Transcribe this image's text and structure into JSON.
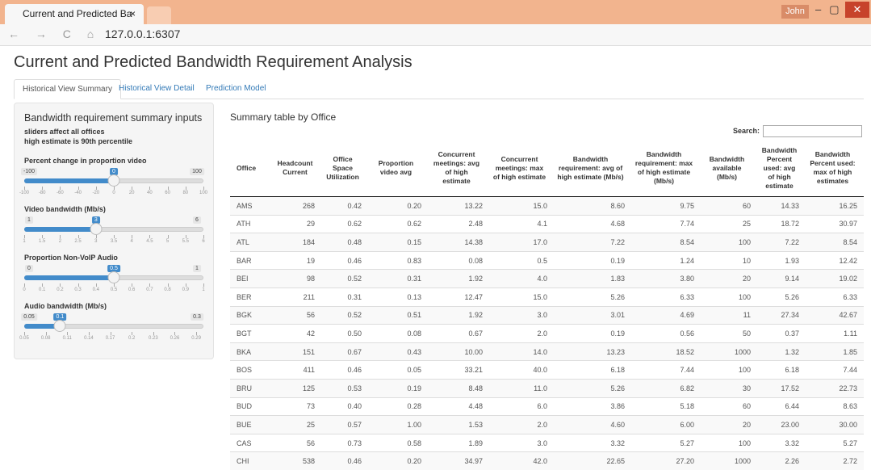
{
  "browser": {
    "tab_title": "Current and Predicted Ba",
    "user": "John",
    "url": "127.0.0.1:6307"
  },
  "header": {
    "title": "Current and Predicted Bandwidth Requirement Analysis"
  },
  "tabs": [
    "Historical View Summary",
    "Historical View Detail",
    "Prediction Model"
  ],
  "sidebar": {
    "title": "Bandwidth requirement summary inputs",
    "notes": [
      "sliders affect all offices",
      "high estimate is 90th percentile"
    ],
    "sliders": [
      {
        "label": "Percent change in proportion video",
        "min": -100,
        "max": 100,
        "value": 0,
        "ticks": [
          -100,
          -80,
          -60,
          -40,
          -20,
          0,
          20,
          40,
          60,
          80,
          100
        ]
      },
      {
        "label": "Video bandwidth (Mb/s)",
        "min": 1,
        "max": 6,
        "value": 3,
        "ticks": [
          1,
          1.5,
          2,
          2.5,
          3,
          3.5,
          4,
          4.5,
          5,
          5.5,
          6
        ]
      },
      {
        "label": "Proportion Non-VoIP Audio",
        "min": 0,
        "max": 1,
        "value": 0.5,
        "ticks": [
          0,
          0.1,
          0.2,
          0.3,
          0.4,
          0.5,
          0.6,
          0.7,
          0.8,
          0.9,
          1
        ]
      },
      {
        "label": "Audio bandwidth (Mb/s)",
        "min": 0.05,
        "max": 0.3,
        "value": 0.1,
        "ticks": [
          0.05,
          0.08,
          0.11,
          0.14,
          0.17,
          0.2,
          0.23,
          0.26,
          0.29
        ]
      }
    ]
  },
  "table": {
    "caption": "Summary table by Office",
    "search_label": "Search:",
    "columns": [
      "Office",
      "Headcount Current",
      "Office Space Utilization",
      "Proportion video avg",
      "Concurrent meetings: avg of high estimate",
      "Concurrent meetings: max of high estimate",
      "Bandwidth requirement: avg of high estimate (Mb/s)",
      "Bandwidth requirement: max of high estimate (Mb/s)",
      "Bandwidth available (Mb/s)",
      "Bandwidth Percent used: avg of high estimate",
      "Bandwidth Percent used: max of high estimates"
    ],
    "rows": [
      [
        "AMS",
        "268",
        "0.42",
        "0.20",
        "13.22",
        "15.0",
        "8.60",
        "9.75",
        "60",
        "14.33",
        "16.25"
      ],
      [
        "ATH",
        "29",
        "0.62",
        "0.62",
        "2.48",
        "4.1",
        "4.68",
        "7.74",
        "25",
        "18.72",
        "30.97"
      ],
      [
        "ATL",
        "184",
        "0.48",
        "0.15",
        "14.38",
        "17.0",
        "7.22",
        "8.54",
        "100",
        "7.22",
        "8.54"
      ],
      [
        "BAR",
        "19",
        "0.46",
        "0.83",
        "0.08",
        "0.5",
        "0.19",
        "1.24",
        "10",
        "1.93",
        "12.42"
      ],
      [
        "BEI",
        "98",
        "0.52",
        "0.31",
        "1.92",
        "4.0",
        "1.83",
        "3.80",
        "20",
        "9.14",
        "19.02"
      ],
      [
        "BER",
        "211",
        "0.31",
        "0.13",
        "12.47",
        "15.0",
        "5.26",
        "6.33",
        "100",
        "5.26",
        "6.33"
      ],
      [
        "BGK",
        "56",
        "0.52",
        "0.51",
        "1.92",
        "3.0",
        "3.01",
        "4.69",
        "11",
        "27.34",
        "42.67"
      ],
      [
        "BGT",
        "42",
        "0.50",
        "0.08",
        "0.67",
        "2.0",
        "0.19",
        "0.56",
        "50",
        "0.37",
        "1.11"
      ],
      [
        "BKA",
        "151",
        "0.67",
        "0.43",
        "10.00",
        "14.0",
        "13.23",
        "18.52",
        "1000",
        "1.32",
        "1.85"
      ],
      [
        "BOS",
        "411",
        "0.46",
        "0.05",
        "33.21",
        "40.0",
        "6.18",
        "7.44",
        "100",
        "6.18",
        "7.44"
      ],
      [
        "BRU",
        "125",
        "0.53",
        "0.19",
        "8.48",
        "11.0",
        "5.26",
        "6.82",
        "30",
        "17.52",
        "22.73"
      ],
      [
        "BUD",
        "73",
        "0.40",
        "0.28",
        "4.48",
        "6.0",
        "3.86",
        "5.18",
        "60",
        "6.44",
        "8.63"
      ],
      [
        "BUE",
        "25",
        "0.57",
        "1.00",
        "1.53",
        "2.0",
        "4.60",
        "6.00",
        "20",
        "23.00",
        "30.00"
      ],
      [
        "CAS",
        "56",
        "0.73",
        "0.58",
        "1.89",
        "3.0",
        "3.32",
        "5.27",
        "100",
        "3.32",
        "5.27"
      ],
      [
        "CHI",
        "538",
        "0.46",
        "0.20",
        "34.97",
        "42.0",
        "22.65",
        "27.20",
        "1000",
        "2.26",
        "2.72"
      ]
    ]
  }
}
